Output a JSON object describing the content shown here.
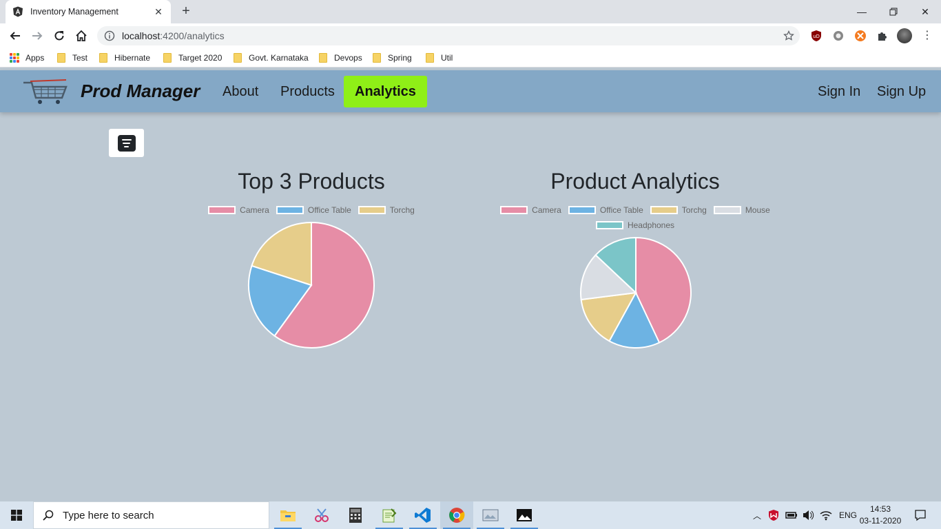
{
  "browser": {
    "tab_title": "Inventory Management",
    "url_host": "localhost",
    "url_path": ":4200/analytics",
    "bookmarks": [
      "Apps",
      "Test",
      "Hibernate",
      "Target 2020",
      "Govt. Karnataka",
      "Devops",
      "Spring",
      "Util"
    ]
  },
  "navbar": {
    "brand": "Prod Manager",
    "links": [
      "About",
      "Products",
      "Analytics"
    ],
    "active": "Analytics",
    "auth": [
      "Sign In",
      "Sign Up"
    ]
  },
  "colors": {
    "navbar_bg": "#84a8c6",
    "active_link": "#8fef17",
    "page_bg": "#bdc9d3"
  },
  "icons": {
    "filter_toggle": "filter-list-icon"
  },
  "chart_data": [
    {
      "type": "pie",
      "title": "Top 3 Products",
      "categories": [
        "Camera",
        "Office Table",
        "Torchg"
      ],
      "values": [
        60,
        20,
        20
      ],
      "colors": [
        "#e68da6",
        "#6db3e3",
        "#e6cd8a"
      ],
      "legend": "top"
    },
    {
      "type": "pie",
      "title": "Product Analytics",
      "categories": [
        "Camera",
        "Office Table",
        "Torchg",
        "Mouse",
        "Headphones"
      ],
      "values": [
        43,
        15,
        15,
        14,
        13
      ],
      "colors": [
        "#e68da6",
        "#6db3e3",
        "#e6cd8a",
        "#d9dde3",
        "#7bc5c8"
      ],
      "legend": "top"
    }
  ],
  "taskbar": {
    "search_placeholder": "Type here to search",
    "lang": "ENG",
    "time": "14:53",
    "date": "03-11-2020"
  }
}
